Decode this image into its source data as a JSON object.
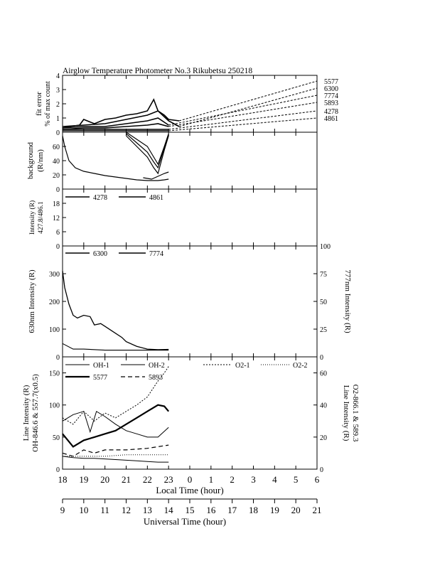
{
  "title": "Airglow Temperature Photometer No.3  Rikubetsu    250218",
  "local_time_label": "Local Time (hour)",
  "universal_time_label": "Universal Time (hour)",
  "colors": {
    "line": "#000000",
    "background": "#ffffff"
  },
  "chart_data": [
    {
      "id": "fit_error",
      "type": "line",
      "ylabel_1": "fit error",
      "ylabel_2": "% of max count",
      "ylim": [
        0,
        4
      ],
      "yticks": [
        "0",
        "1",
        "2",
        "3",
        "4"
      ],
      "x_unit": "local hour (18 = 18:00, 30 = 06:00 next day)",
      "xlim": [
        18,
        30
      ],
      "series": [
        {
          "name": "5577",
          "x": [
            18,
            18.3,
            18.8,
            19.0,
            19.5,
            20,
            20.5,
            21,
            21.5,
            22,
            22.3,
            22.5,
            22.8,
            23,
            23.5,
            30
          ],
          "y": [
            0.3,
            0.4,
            0.5,
            0.9,
            0.6,
            0.9,
            1.0,
            1.2,
            1.3,
            1.5,
            2.3,
            1.5,
            1.2,
            0.9,
            0.8,
            3.6
          ]
        },
        {
          "name": "6300",
          "x": [
            18,
            19,
            20,
            21,
            22,
            22.5,
            23,
            23.5,
            30
          ],
          "y": [
            0.4,
            0.5,
            0.6,
            0.9,
            1.2,
            1.5,
            0.8,
            0.4,
            3.1
          ]
        },
        {
          "name": "7774",
          "x": [
            18,
            19,
            20,
            21,
            22,
            22.5,
            23,
            30
          ],
          "y": [
            0.3,
            0.4,
            0.4,
            0.6,
            0.8,
            1.0,
            0.5,
            2.6
          ]
        },
        {
          "name": "5893",
          "x": [
            18,
            19,
            20,
            21,
            22,
            22.5,
            23,
            30
          ],
          "y": [
            0.2,
            0.3,
            0.3,
            0.4,
            0.5,
            0.6,
            0.4,
            2.1
          ]
        },
        {
          "name": "4278",
          "x": [
            18,
            19,
            20,
            21,
            22,
            23,
            30
          ],
          "y": [
            0.2,
            0.2,
            0.2,
            0.2,
            0.2,
            0.2,
            1.5
          ]
        },
        {
          "name": "4861",
          "x": [
            18,
            19,
            20,
            21,
            22,
            23,
            30
          ],
          "y": [
            0.1,
            0.1,
            0.1,
            0.1,
            0.1,
            0.1,
            1.0
          ]
        }
      ],
      "legend": [
        "5577",
        "6300",
        "7774",
        "5893",
        "4278",
        "4861"
      ]
    },
    {
      "id": "background",
      "type": "line",
      "ylabel_1": "background",
      "ylabel_2": "(R/nm)",
      "ylim": [
        0,
        80
      ],
      "yticks": [
        "0",
        "20",
        "40",
        "60"
      ],
      "xlim": [
        18,
        30
      ],
      "series": [
        {
          "name": "",
          "x": [
            18,
            18.1,
            18.3,
            18.6,
            19,
            19.5,
            20,
            20.5,
            21,
            21.5,
            22,
            22.5,
            22.8,
            23
          ],
          "y": [
            75,
            60,
            40,
            30,
            25,
            22,
            19,
            17,
            15,
            13,
            12,
            12,
            13,
            14
          ]
        },
        {
          "name": "",
          "x": [
            21,
            21.5,
            22,
            22.3,
            22.5,
            22.8,
            23
          ],
          "y": [
            75,
            60,
            45,
            30,
            22,
            55,
            75
          ]
        },
        {
          "name": "",
          "x": [
            21,
            21.5,
            22,
            22.3,
            22.5,
            22.8,
            23
          ],
          "y": [
            80,
            70,
            60,
            45,
            35,
            60,
            78
          ]
        },
        {
          "name": "",
          "x": [
            21,
            21.5,
            22,
            22.3,
            22.5,
            22.8,
            23
          ],
          "y": [
            78,
            65,
            52,
            38,
            30,
            58,
            76
          ]
        },
        {
          "name": "",
          "x": [
            21.8,
            22.2,
            22.5,
            22.8,
            23
          ],
          "y": [
            16,
            14,
            18,
            22,
            24
          ]
        }
      ]
    },
    {
      "id": "blue_lines",
      "type": "line",
      "ylabel_1": "Intensity (R)",
      "ylabel_2": "427.8/486.1",
      "ylim": [
        0,
        24
      ],
      "yticks": [
        "0",
        "6",
        "12",
        "18"
      ],
      "xlim": [
        18,
        30
      ],
      "series": [
        {
          "name": "4278",
          "x": [],
          "y": []
        },
        {
          "name": "4861",
          "x": [],
          "y": []
        }
      ],
      "legend": [
        "4278",
        "4861"
      ]
    },
    {
      "id": "red_lines",
      "type": "line",
      "ylabel_left": "630nm Intensity (R)",
      "ylabel_right": "777nm Intensity (R)",
      "ylim_left": [
        0,
        400
      ],
      "ylim_right": [
        0,
        100
      ],
      "yticks_left": [
        "0",
        "100",
        "200",
        "300"
      ],
      "yticks_right": [
        "0",
        "25",
        "50",
        "75",
        "100"
      ],
      "xlim": [
        18,
        30
      ],
      "series": [
        {
          "name": "6300",
          "axis": "left",
          "x": [
            18,
            18.1,
            18.3,
            18.5,
            18.7,
            19,
            19.3,
            19.5,
            19.8,
            20,
            20.3,
            20.8,
            21,
            21.5,
            22,
            22.5,
            23
          ],
          "y": [
            310,
            250,
            190,
            150,
            140,
            150,
            145,
            115,
            120,
            110,
            95,
            70,
            55,
            38,
            28,
            26,
            27
          ]
        },
        {
          "name": "7774",
          "axis": "right",
          "x": [
            18,
            18.5,
            19,
            20,
            21,
            22,
            23
          ],
          "y": [
            12,
            7,
            7,
            6,
            6,
            6,
            6
          ]
        }
      ],
      "legend": [
        "6300",
        "7774"
      ]
    },
    {
      "id": "oh_o2",
      "type": "line",
      "ylabel_left_1": "Line Intensity (R)",
      "ylabel_left_2": "OH-846.6 & 557.7(x0.5)",
      "ylabel_right_1": "Line Intensity (R)",
      "ylabel_right_2": "O2-866.1 & 589.3",
      "ylim_left": [
        0,
        175
      ],
      "ylim_right": [
        0,
        70
      ],
      "yticks_left": [
        "0",
        "50",
        "100",
        "150"
      ],
      "yticks_right": [
        "0",
        "20",
        "40",
        "60"
      ],
      "xlim": [
        18,
        30
      ],
      "series": [
        {
          "name": "OH-1",
          "axis": "left",
          "x": [
            18,
            18.5,
            19,
            19.5,
            20,
            20.5,
            21,
            21.5,
            22,
            22.5,
            23
          ],
          "y": [
            20,
            18,
            17,
            17,
            16,
            15,
            14,
            13,
            12,
            11,
            11
          ]
        },
        {
          "name": "OH-2",
          "axis": "left",
          "x": [
            18,
            18.5,
            19,
            19.3,
            19.6,
            20,
            20.5,
            21,
            21.5,
            22,
            22.5,
            23
          ],
          "y": [
            75,
            85,
            90,
            58,
            90,
            82,
            70,
            60,
            55,
            50,
            50,
            65
          ]
        },
        {
          "name": "O2-1",
          "axis": "right",
          "x": [
            18,
            18.5,
            19,
            19.5,
            20,
            20.5,
            21,
            21.5,
            22,
            22.5,
            22.8,
            23
          ],
          "y": [
            32,
            28,
            36,
            30,
            35,
            32,
            36,
            40,
            45,
            55,
            60,
            64
          ]
        },
        {
          "name": "O2-2",
          "axis": "right",
          "x": [
            18,
            19,
            20,
            21,
            22,
            23
          ],
          "y": [
            8,
            8,
            8,
            9,
            9,
            9
          ]
        },
        {
          "name": "5577",
          "axis": "left",
          "x": [
            18,
            18.5,
            19,
            19.5,
            20,
            20.5,
            21,
            21.5,
            22,
            22.5,
            22.8,
            23
          ],
          "y": [
            55,
            35,
            45,
            50,
            55,
            60,
            70,
            80,
            90,
            100,
            98,
            90
          ]
        },
        {
          "name": "5893",
          "axis": "right",
          "x": [
            18,
            18.5,
            19,
            19.5,
            20,
            21,
            22,
            23
          ],
          "y": [
            10,
            8,
            12,
            10,
            12,
            12,
            13,
            15
          ]
        }
      ],
      "legend": [
        "OH-1",
        "OH-2",
        "O2-1",
        "O2-2",
        "5577",
        "5893"
      ]
    }
  ],
  "local_ticks": [
    "18",
    "19",
    "20",
    "21",
    "22",
    "23",
    "0",
    "1",
    "2",
    "3",
    "4",
    "5",
    "6"
  ],
  "universal_ticks": [
    "9",
    "10",
    "11",
    "12",
    "13",
    "14",
    "15",
    "16",
    "17",
    "18",
    "19",
    "20",
    "21"
  ]
}
